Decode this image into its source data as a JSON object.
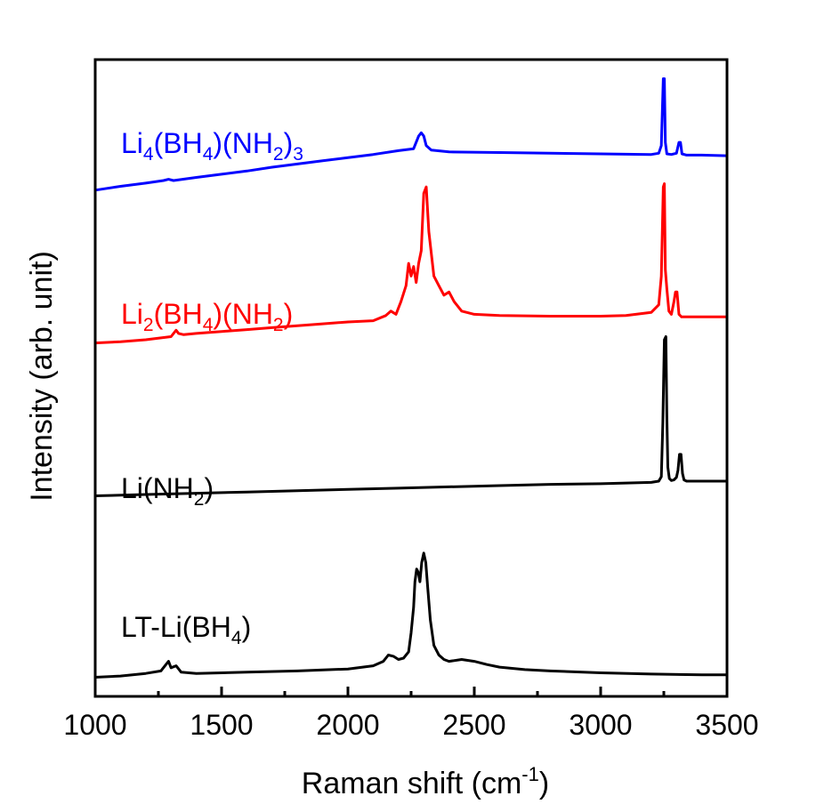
{
  "chart_data": {
    "type": "line",
    "xlabel": "Raman shift (cm",
    "xlabel_sup": "-1",
    "xlabel_end": ")",
    "ylabel": "Intensity (arb. unit)",
    "xlim": [
      1000,
      3500
    ],
    "ylim": [
      0,
      100
    ],
    "x_ticks": [
      "1000",
      "1500",
      "2000",
      "2500",
      "3000",
      "3500"
    ],
    "grid": false,
    "series": [
      {
        "name_parts": [
          [
            "Li",
            ""
          ],
          [
            "4",
            "sub"
          ],
          [
            "(BH",
            ""
          ],
          [
            "4",
            "sub"
          ],
          [
            ")(NH",
            ""
          ],
          [
            "2",
            "sub"
          ],
          [
            ")",
            ""
          ],
          [
            "3",
            "sub"
          ]
        ],
        "color": "#0000ff",
        "x": [
          1000,
          1100,
          1200,
          1270,
          1290,
          1310,
          1400,
          1500,
          1600,
          1700,
          1800,
          1900,
          2000,
          2100,
          2200,
          2260,
          2280,
          2290,
          2300,
          2310,
          2330,
          2400,
          2600,
          2800,
          3000,
          3200,
          3230,
          3240,
          3248,
          3252,
          3256,
          3262,
          3280,
          3300,
          3310,
          3316,
          3322,
          3340,
          3400,
          3500
        ],
        "y": [
          79.5,
          80.1,
          80.6,
          81.0,
          81.2,
          81.0,
          81.5,
          82.0,
          82.5,
          83.1,
          83.6,
          84.1,
          84.6,
          85.1,
          85.7,
          86.0,
          88.0,
          88.5,
          88.0,
          86.5,
          85.8,
          85.5,
          85.4,
          85.3,
          85.2,
          85.1,
          85.3,
          86.5,
          97.0,
          97.0,
          87.0,
          85.2,
          85.1,
          85.3,
          87.0,
          87.0,
          85.2,
          85.0,
          85.0,
          84.9
        ]
      },
      {
        "name_parts": [
          [
            "Li",
            ""
          ],
          [
            "2",
            "sub"
          ],
          [
            "(BH",
            ""
          ],
          [
            "4",
            "sub"
          ],
          [
            ")(NH",
            ""
          ],
          [
            "2",
            "sub"
          ],
          [
            ")",
            ""
          ]
        ],
        "color": "#ff0000",
        "x": [
          1000,
          1100,
          1200,
          1300,
          1320,
          1330,
          1350,
          1400,
          1500,
          1600,
          1700,
          1800,
          1900,
          2000,
          2100,
          2150,
          2170,
          2190,
          2210,
          2230,
          2240,
          2250,
          2260,
          2270,
          2280,
          2290,
          2300,
          2310,
          2320,
          2340,
          2360,
          2380,
          2400,
          2420,
          2450,
          2500,
          2600,
          2800,
          3000,
          3100,
          3200,
          3230,
          3240,
          3248,
          3252,
          3256,
          3262,
          3270,
          3280,
          3290,
          3296,
          3302,
          3310,
          3320,
          3400,
          3500
        ],
        "y": [
          55.5,
          55.7,
          56.0,
          56.5,
          57.5,
          57.0,
          56.8,
          57.0,
          57.3,
          57.6,
          57.9,
          58.2,
          58.5,
          58.8,
          59.0,
          59.8,
          60.5,
          60.0,
          62.0,
          64.5,
          68.0,
          66.0,
          67.5,
          65.0,
          68.0,
          70.0,
          79.0,
          80.0,
          73.0,
          66.0,
          64.5,
          63.0,
          63.5,
          62.0,
          60.5,
          60.0,
          59.8,
          59.7,
          59.7,
          59.8,
          60.3,
          61.5,
          66.0,
          80.0,
          80.5,
          67.0,
          64.0,
          60.5,
          60.0,
          62.0,
          63.5,
          63.5,
          60.0,
          59.6,
          59.6,
          59.6
        ]
      },
      {
        "name_parts": [
          [
            "Li(NH",
            ""
          ],
          [
            "2",
            "sub"
          ],
          [
            ")",
            ""
          ]
        ],
        "color": "#000000",
        "x": [
          1000,
          1200,
          1400,
          1600,
          1800,
          2000,
          2200,
          2400,
          2600,
          2800,
          3000,
          3100,
          3200,
          3230,
          3240,
          3246,
          3252,
          3258,
          3262,
          3266,
          3272,
          3280,
          3290,
          3300,
          3306,
          3312,
          3318,
          3324,
          3330,
          3340,
          3400,
          3500
        ],
        "y": [
          31.5,
          31.7,
          31.9,
          32.1,
          32.3,
          32.5,
          32.7,
          32.9,
          33.1,
          33.3,
          33.4,
          33.5,
          33.6,
          33.8,
          34.5,
          43.0,
          56.0,
          56.5,
          44.0,
          36.0,
          34.2,
          33.9,
          34.0,
          34.4,
          35.5,
          38.0,
          38.0,
          35.0,
          34.0,
          33.8,
          33.8,
          33.8
        ]
      },
      {
        "name_parts": [
          [
            "LT-Li(BH",
            ""
          ],
          [
            "4",
            "sub"
          ],
          [
            ")",
            ""
          ]
        ],
        "color": "#000000",
        "x": [
          1000,
          1100,
          1200,
          1260,
          1280,
          1290,
          1300,
          1320,
          1340,
          1400,
          1600,
          1800,
          2000,
          2100,
          2140,
          2160,
          2180,
          2200,
          2220,
          2240,
          2250,
          2260,
          2265,
          2272,
          2278,
          2285,
          2292,
          2300,
          2308,
          2316,
          2326,
          2340,
          2360,
          2380,
          2400,
          2450,
          2500,
          2550,
          2600,
          2700,
          2800,
          3000,
          3200,
          3400,
          3500
        ],
        "y": [
          3.0,
          3.2,
          3.6,
          4.0,
          5.0,
          5.5,
          4.5,
          4.8,
          3.8,
          3.6,
          3.8,
          4.0,
          4.3,
          4.8,
          5.5,
          6.5,
          6.3,
          5.8,
          6.0,
          7.0,
          10.0,
          14.0,
          18.0,
          20.0,
          19.5,
          18.0,
          21.0,
          22.5,
          21.0,
          17.0,
          12.0,
          8.0,
          6.5,
          5.8,
          5.5,
          5.8,
          5.5,
          5.0,
          4.6,
          4.2,
          4.0,
          3.7,
          3.5,
          3.4,
          3.4
        ]
      }
    ]
  }
}
